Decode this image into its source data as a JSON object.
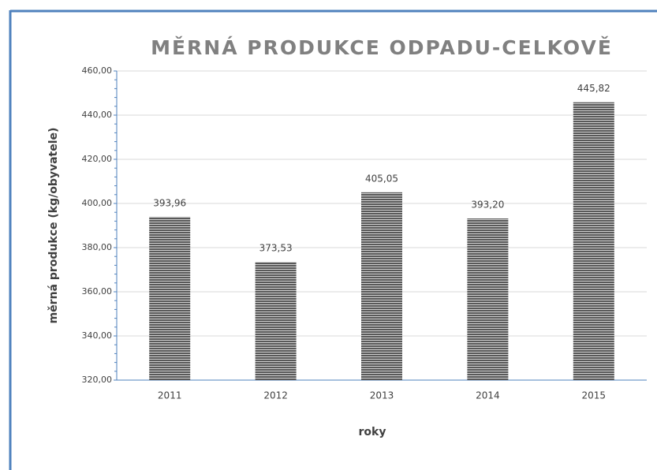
{
  "chart_data": {
    "type": "bar",
    "title": "MĚRNÁ PRODUKCE ODPADU-CELKOVĚ",
    "x_label": "roky",
    "y_label": "měrná produkce (kg/obyvatele)",
    "categories": [
      "2011",
      "2012",
      "2013",
      "2014",
      "2015"
    ],
    "values": [
      393.96,
      373.53,
      405.05,
      393.2,
      445.82
    ],
    "value_labels": [
      "393,96",
      "373,53",
      "405,05",
      "393,20",
      "445,82"
    ],
    "color": "#595959",
    "ylim": [
      320,
      460
    ],
    "yticks": [
      {
        "value": 320,
        "label": "320,00"
      },
      {
        "value": 340,
        "label": "340,00"
      },
      {
        "value": 360,
        "label": "360,00"
      },
      {
        "value": 380,
        "label": "380,00"
      },
      {
        "value": 400,
        "label": "400,00"
      },
      {
        "value": 420,
        "label": "420,00"
      },
      {
        "value": 440,
        "label": "440,00"
      },
      {
        "value": 460,
        "label": "460,00"
      }
    ],
    "grid": true
  }
}
